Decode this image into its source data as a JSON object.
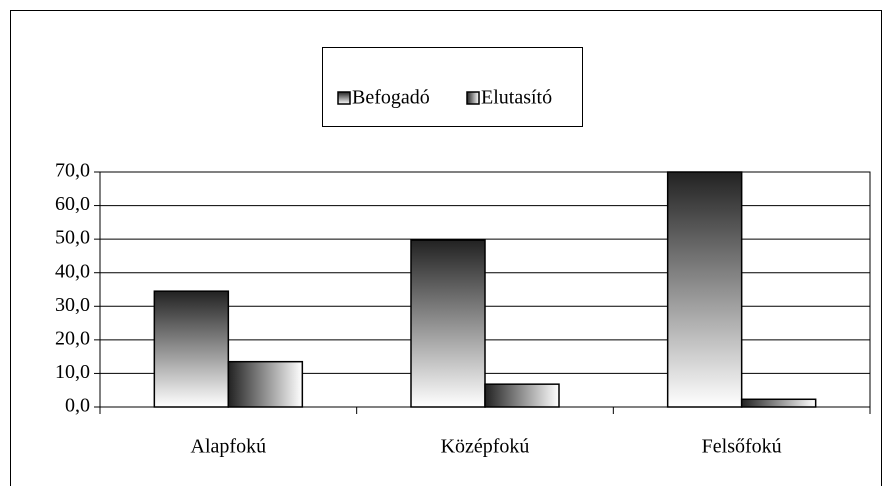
{
  "chart_data": {
    "type": "bar",
    "categories": [
      "Alapfokú",
      "Középfokú",
      "Felsőfokú"
    ],
    "series": [
      {
        "name": "Befogadó",
        "color": "#222222",
        "values": [
          34.5,
          49.7,
          70
        ]
      },
      {
        "name": "Elutasító",
        "color": "#222222",
        "values": [
          13.5,
          6.8,
          2.3
        ]
      }
    ],
    "ylim": [
      0,
      70
    ],
    "yticks": [
      {
        "value": 0,
        "label": "0,0"
      },
      {
        "value": 10,
        "label": "10,0"
      },
      {
        "value": 20,
        "label": "20,0"
      },
      {
        "value": 30,
        "label": "30,0"
      },
      {
        "value": 40,
        "label": "40,0"
      },
      {
        "value": 50,
        "label": "50,0"
      },
      {
        "value": 60,
        "label": "60,0"
      },
      {
        "value": 70,
        "label": "70,0"
      }
    ],
    "grid": true,
    "legend": "top"
  }
}
